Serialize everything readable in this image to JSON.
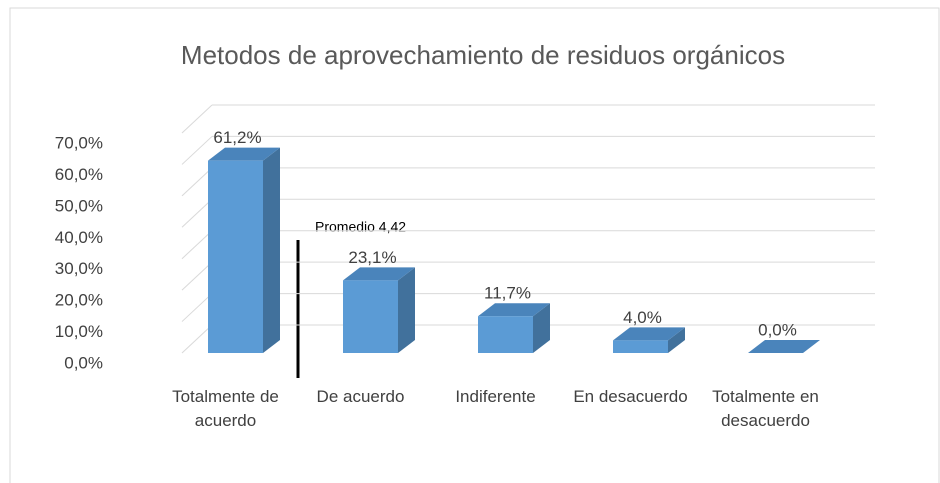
{
  "chart_data": {
    "type": "bar3d",
    "title": "Metodos de aprovechamiento de residuos orgánicos",
    "annotation": "Promedio 4,42",
    "categories": [
      "Totalmente de acuerdo",
      "De acuerdo",
      "Indiferente",
      "En desacuerdo",
      "Totalmente en desacuerdo"
    ],
    "values": [
      61.2,
      23.1,
      11.7,
      4.0,
      0.0
    ],
    "value_labels": [
      "61,2%",
      "23,1%",
      "11,7%",
      "4,0%",
      "0,0%"
    ],
    "color": "#5b9bd5",
    "ylim": [
      0,
      70
    ],
    "yticks": [
      {
        "value": 0,
        "label": "0,0%"
      },
      {
        "value": 10,
        "label": "10,0%"
      },
      {
        "value": 20,
        "label": "20,0%"
      },
      {
        "value": 30,
        "label": "30,0%"
      },
      {
        "value": 40,
        "label": "40,0%"
      },
      {
        "value": 50,
        "label": "50,0%"
      },
      {
        "value": 60,
        "label": "60,0%"
      },
      {
        "value": 70,
        "label": "70,0%"
      }
    ],
    "grid": true
  }
}
